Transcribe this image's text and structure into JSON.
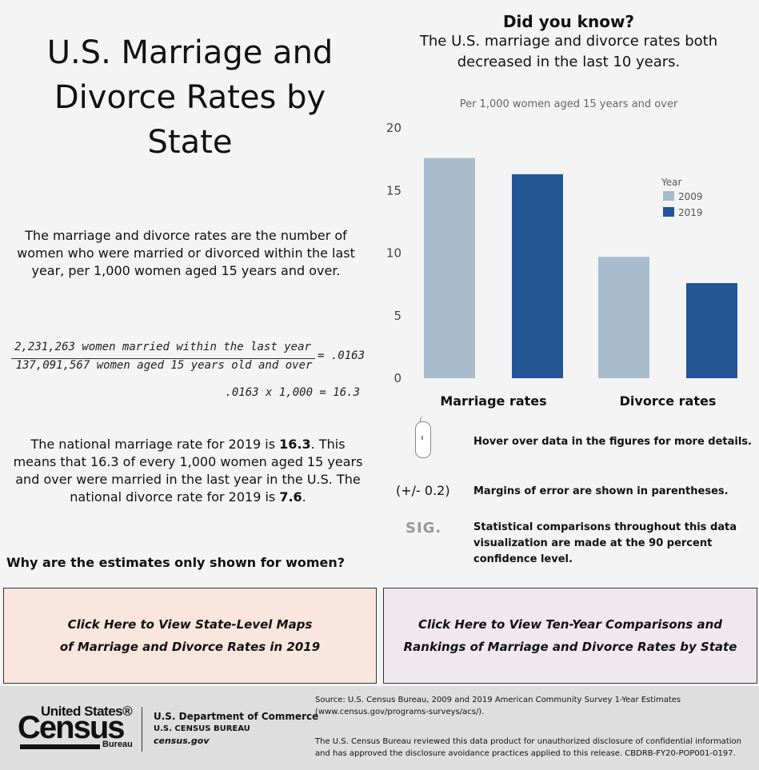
{
  "title": "U.S. Marriage and Divorce Rates by State",
  "definition": "The marriage and divorce rates are the number of women who were married or divorced within the last year, per 1,000 women aged 15 years and over.",
  "formula": {
    "numerator": "2,231,263 women married within the last year",
    "denominator": "137,091,567 women aged 15 years old and over",
    "result": "= .0163",
    "calculation": ".0163 x 1,000 = 16.3"
  },
  "national": {
    "part1": "The national marriage rate for 2019 is ",
    "marriage_rate": "16.3",
    "part2": ". This means that 16.3 of every 1,000 women aged 15 years and over were married in the last year in the U.S. The national divorce rate for 2019 is ",
    "divorce_rate": "7.6",
    "part3": "."
  },
  "why_link": "Why are the estimates only shown for women?",
  "did_you_know": {
    "title": "Did you know?",
    "text": "The U.S. marriage and divorce rates both decreased in the last 10 years."
  },
  "chart_data": {
    "type": "bar",
    "subtitle": "Per 1,000 women aged 15 years and over",
    "categories": [
      "Marriage rates",
      "Divorce rates"
    ],
    "series": [
      {
        "name": "2009",
        "values": [
          17.6,
          9.7
        ],
        "color": "#a7bccc"
      },
      {
        "name": "2019",
        "values": [
          16.3,
          7.6
        ],
        "color": "#235594"
      }
    ],
    "ylim": [
      0,
      20
    ],
    "yticks": [
      0,
      5,
      10,
      15,
      20
    ],
    "legend_title": "Year",
    "legend_position": "right",
    "grid": false
  },
  "notes": {
    "hover": "Hover over data in the figures for more details.",
    "moe_symbol": "(+/- 0.2)",
    "moe": "Margins of error are shown in parentheses.",
    "sig_symbol": "SIG.",
    "sig": "Statistical comparisons throughout this data visualization are made at the 90 percent confidence level."
  },
  "cta": {
    "maps_line1": "Click Here to View State-Level Maps",
    "maps_line2": "of Marriage and Divorce Rates in 2019",
    "compare_line1": "Click Here to View Ten-Year Comparisons and",
    "compare_line2": "Rankings of Marriage and Divorce Rates by State"
  },
  "footer": {
    "logo_top": "United States®",
    "logo_main": "Census",
    "logo_bottom": "Bureau",
    "dept": "U.S. Department of Commerce",
    "bureau": "U.S. CENSUS BUREAU",
    "site": "census.gov",
    "source": "Source: U.S. Census Bureau, 2009 and 2019 American Community Survey 1-Year Estimates (www.census.gov/programs-surveys/acs/).",
    "disclaimer": "The U.S. Census Bureau reviewed this data product for unauthorized disclosure of confidential information and has approved the disclosure avoidance practices applied to this release. CBDRB-FY20-POP001-0197."
  }
}
